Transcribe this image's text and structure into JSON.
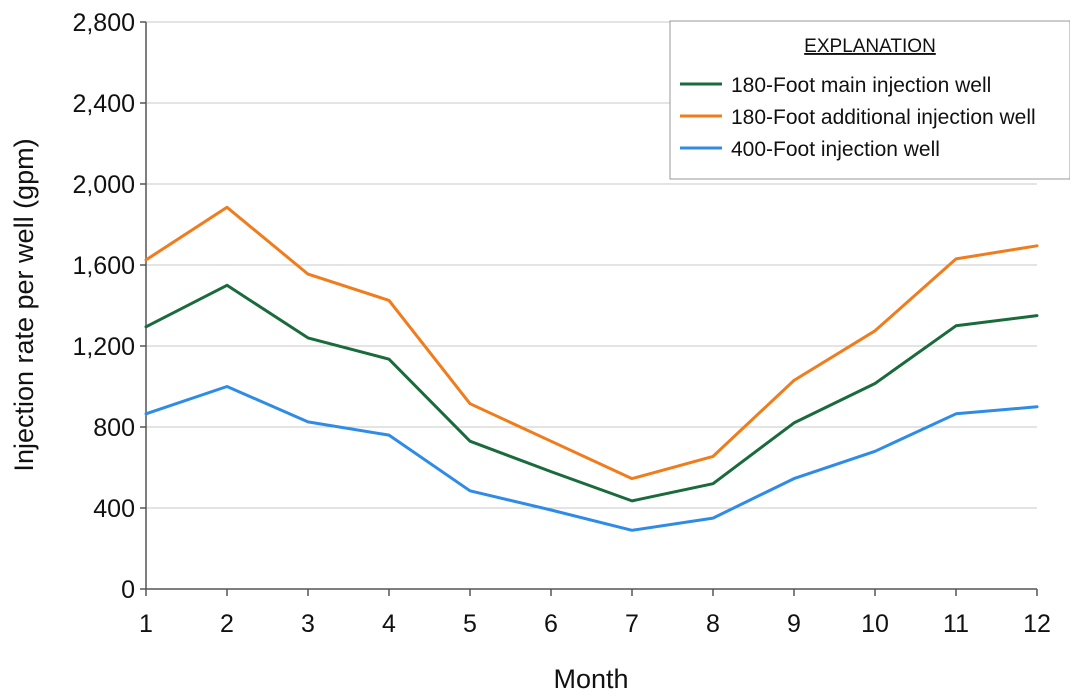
{
  "chart_data": {
    "type": "line",
    "title": "",
    "xlabel": "Month",
    "ylabel": "Injection rate per well (gpm)",
    "x": [
      1,
      2,
      3,
      4,
      5,
      6,
      7,
      8,
      9,
      10,
      11,
      12
    ],
    "x_tick_labels": [
      "1",
      "2",
      "3",
      "4",
      "5",
      "6",
      "7",
      "8",
      "9",
      "10",
      "11",
      "12"
    ],
    "xlim": [
      1,
      12
    ],
    "ylim": [
      0,
      2800
    ],
    "y_ticks": [
      0,
      400,
      800,
      1200,
      1600,
      2000,
      2400,
      2800
    ],
    "y_tick_labels": [
      "0",
      "400",
      "800",
      "1,200",
      "1,600",
      "2,000",
      "2,400",
      "2,800"
    ],
    "grid": "horizontal",
    "legend_title": "EXPLANATION",
    "legend_position": "top-right",
    "series": [
      {
        "name": "180-Foot main injection well",
        "color": "#1a6b3c",
        "values": [
          1295,
          1500,
          1240,
          1135,
          730,
          580,
          435,
          520,
          820,
          1015,
          1300,
          1350
        ]
      },
      {
        "name": "180-Foot additional injection well",
        "color": "#f07c1c",
        "values": [
          1625,
          1885,
          1555,
          1425,
          915,
          730,
          545,
          655,
          1030,
          1275,
          1630,
          1695
        ]
      },
      {
        "name": "400-Foot injection well",
        "color": "#2f8ce6",
        "values": [
          865,
          1000,
          825,
          760,
          485,
          390,
          290,
          350,
          545,
          680,
          865,
          900
        ]
      }
    ]
  }
}
